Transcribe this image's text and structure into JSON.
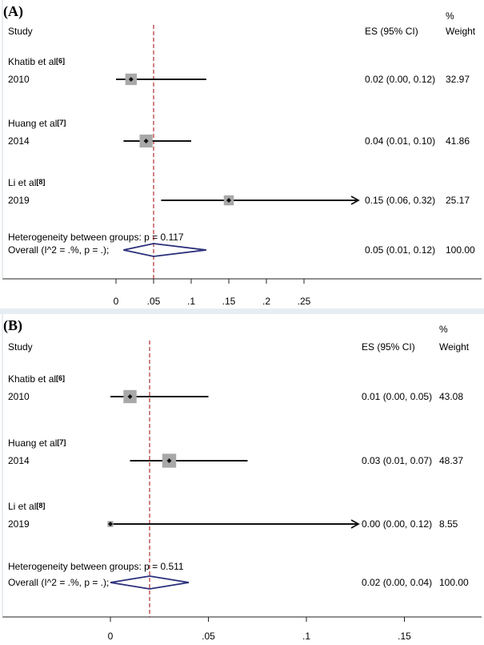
{
  "figure": {
    "panels": [
      {
        "label": "(A)",
        "header": {
          "study": "Study",
          "es": "ES (95% CI)",
          "weight_pct": "%",
          "weight": "Weight"
        },
        "heterogeneity": "Heterogeneity between groups: p = 0.117",
        "overall_label": "Overall  (I^2 = .%, p = .);",
        "overall_text": "0.05 (0.01, 0.12)",
        "overall_weight": "100.00"
      },
      {
        "label": "(B)",
        "header": {
          "study": "Study",
          "es": "ES (95% CI)",
          "weight_pct": "%",
          "weight": "Weight"
        },
        "heterogeneity": "Heterogeneity between groups: p = 0.511",
        "overall_label": "Overall  (I^2 = .%, p = .);",
        "overall_text": "0.02 (0.00, 0.04)",
        "overall_weight": "100.00"
      }
    ]
  },
  "chart_data": [
    {
      "type": "forest",
      "xticks": [
        0,
        0.05,
        0.1,
        0.15,
        0.2,
        0.25
      ],
      "xtick_labels": [
        "0",
        ".05",
        ".1",
        ".15",
        ".2",
        ".25"
      ],
      "xlim": [
        -0.05,
        0.3
      ],
      "studies": [
        {
          "name": "Khatib et al",
          "ref": "[6]",
          "year": "2010",
          "es": 0.02,
          "lo": 0.0,
          "hi": 0.12,
          "ci_text": "0.02 (0.00, 0.12)",
          "weight": "32.97",
          "arrow": false
        },
        {
          "name": "Huang et al",
          "ref": "[7]",
          "year": "2014",
          "es": 0.04,
          "lo": 0.01,
          "hi": 0.1,
          "ci_text": "0.04 (0.01, 0.10)",
          "weight": "41.86",
          "arrow": false
        },
        {
          "name": "Li et al",
          "ref": "[8]",
          "year": "2019",
          "es": 0.15,
          "lo": 0.06,
          "hi": 0.32,
          "ci_text": "0.15 (0.06, 0.32)",
          "weight": "25.17",
          "arrow": true
        }
      ],
      "overall": {
        "es": 0.05,
        "lo": 0.01,
        "hi": 0.12
      },
      "colors": {
        "diamond": "#2b2f7a",
        "dashed": "#b03030",
        "box": "#a8a8a8"
      }
    },
    {
      "type": "forest",
      "xticks": [
        0,
        0.05,
        0.1,
        0.15
      ],
      "xtick_labels": [
        "0",
        ".05",
        ".1",
        ".15"
      ],
      "xlim": [
        -0.05,
        0.17
      ],
      "studies": [
        {
          "name": "Khatib et al",
          "ref": "[6]",
          "year": "2010",
          "es": 0.01,
          "lo": 0.0,
          "hi": 0.05,
          "ci_text": "0.01 (0.00, 0.05)",
          "weight": "43.08",
          "arrow": false
        },
        {
          "name": "Huang et al",
          "ref": "[7]",
          "year": "2014",
          "es": 0.03,
          "lo": 0.01,
          "hi": 0.07,
          "ci_text": "0.03 (0.01, 0.07)",
          "weight": "48.37",
          "arrow": false
        },
        {
          "name": "Li et al",
          "ref": "[8]",
          "year": "2019",
          "es": 0.0,
          "lo": 0.0,
          "hi": 0.12,
          "ci_text": "0.00 (0.00, 0.12)",
          "weight": "8.55",
          "arrow": true
        }
      ],
      "overall": {
        "es": 0.02,
        "lo": 0.0,
        "hi": 0.04
      },
      "colors": {
        "diamond": "#2b2f7a",
        "dashed": "#b03030",
        "box": "#a8a8a8"
      }
    }
  ]
}
